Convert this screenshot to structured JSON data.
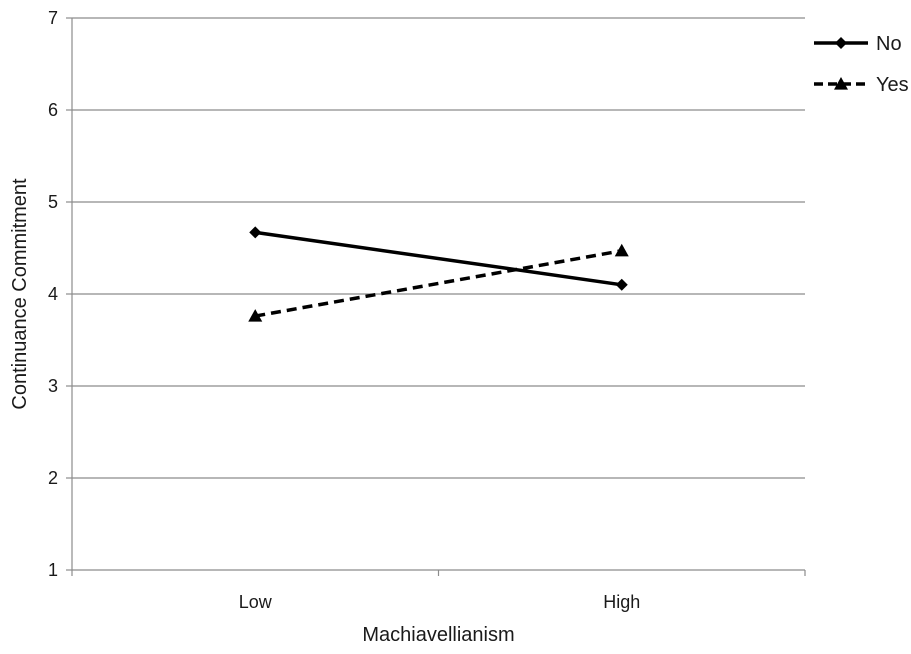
{
  "chart_data": {
    "type": "line",
    "title": "",
    "xlabel": "Machiavellianism",
    "ylabel": "Continuance Commitment",
    "categories": [
      "Low",
      "High"
    ],
    "ylim": [
      1,
      7
    ],
    "yticks": [
      1,
      2,
      3,
      4,
      5,
      6,
      7
    ],
    "grid": true,
    "legend_position": "top-right",
    "series": [
      {
        "name": "No",
        "values": [
          4.67,
          4.1
        ],
        "line_style": "solid",
        "marker": "diamond",
        "color": "#000000"
      },
      {
        "name": "Yes",
        "values": [
          3.76,
          4.47
        ],
        "line_style": "dashed",
        "marker": "triangle",
        "color": "#000000"
      }
    ]
  }
}
